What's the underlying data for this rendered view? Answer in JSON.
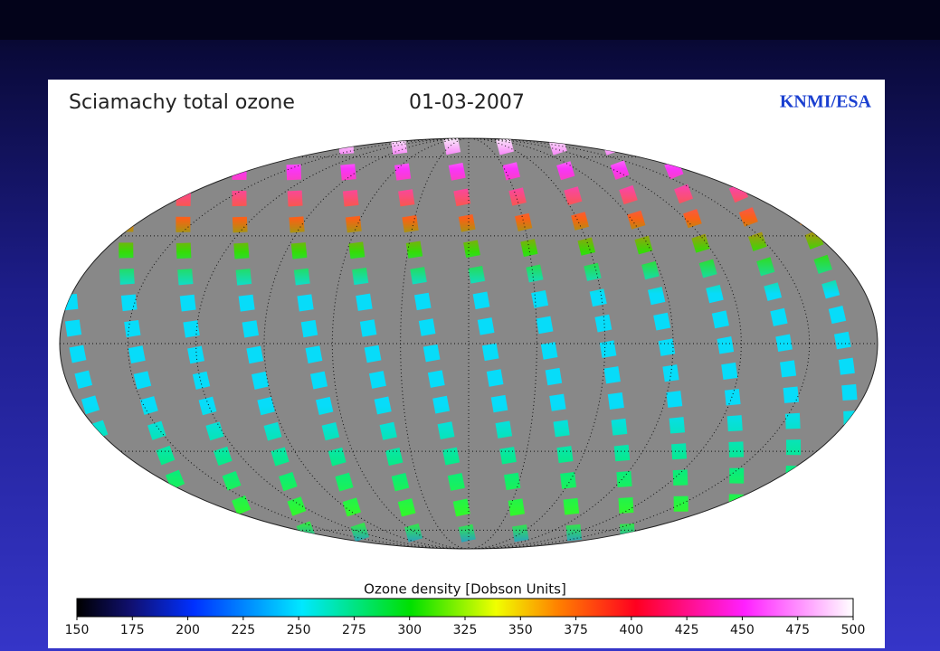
{
  "header": {
    "title": "Sciamachy total ozone",
    "date": "01-03-2007",
    "source": "KNMI/ESA"
  },
  "colorbar": {
    "label": "Ozone density [Dobson Units]",
    "range": [
      150,
      500
    ],
    "ticks": [
      150,
      175,
      200,
      225,
      250,
      275,
      300,
      325,
      350,
      375,
      400,
      425,
      450,
      475,
      500
    ]
  }
}
